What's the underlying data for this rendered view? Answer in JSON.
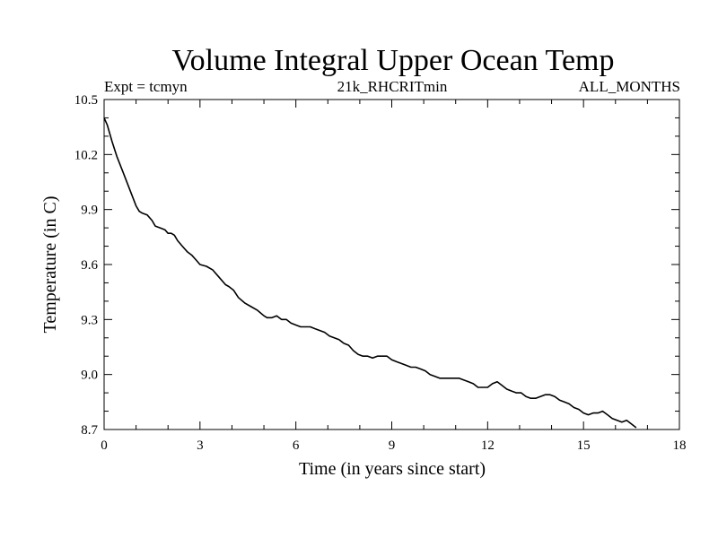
{
  "chart_data": {
    "type": "line",
    "title": "Volume Integral Upper Ocean Temp",
    "subtitle_left": "Expt = tcmyn",
    "subtitle_center": "21k_RHCRITmin",
    "subtitle_right": "ALL_MONTHS",
    "xlabel": "Time (in years since start)",
    "ylabel": "Temperature (in C)",
    "xlim": [
      0,
      18
    ],
    "ylim": [
      8.7,
      10.5
    ],
    "xticks": [
      0,
      3,
      6,
      9,
      12,
      15,
      18
    ],
    "xtick_labels": [
      "0",
      "3",
      "6",
      "9",
      "12",
      "15",
      "18"
    ],
    "yticks": [
      8.7,
      9.0,
      9.3,
      9.6,
      9.9,
      10.2,
      10.5
    ],
    "ytick_labels": [
      "8.7",
      "9.0",
      "9.3",
      "9.6",
      "9.9",
      "10.2",
      "10.5"
    ],
    "grid": false,
    "series": [
      {
        "name": "Temperature",
        "x": [
          0,
          0.1,
          0.25,
          0.4,
          0.6,
          0.8,
          1.0,
          1.1,
          1.2,
          1.35,
          1.5,
          1.6,
          1.75,
          1.9,
          2.0,
          2.1,
          2.2,
          2.3,
          2.45,
          2.6,
          2.75,
          2.9,
          3.0,
          3.2,
          3.4,
          3.6,
          3.8,
          3.9,
          4.05,
          4.2,
          4.4,
          4.6,
          4.8,
          5.0,
          5.1,
          5.25,
          5.4,
          5.55,
          5.7,
          5.85,
          6.0,
          6.15,
          6.3,
          6.45,
          6.6,
          6.75,
          6.9,
          7.05,
          7.2,
          7.35,
          7.5,
          7.65,
          7.8,
          7.95,
          8.1,
          8.25,
          8.4,
          8.55,
          8.7,
          8.85,
          9.0,
          9.15,
          9.3,
          9.45,
          9.6,
          9.75,
          9.9,
          10.05,
          10.2,
          10.35,
          10.5,
          10.65,
          10.8,
          10.95,
          11.1,
          11.25,
          11.4,
          11.55,
          11.7,
          11.85,
          12.0,
          12.15,
          12.3,
          12.45,
          12.6,
          12.75,
          12.9,
          13.05,
          13.2,
          13.35,
          13.5,
          13.65,
          13.8,
          13.95,
          14.1,
          14.25,
          14.4,
          14.55,
          14.7,
          14.85,
          15.0,
          15.15,
          15.3,
          15.45,
          15.6,
          15.75,
          15.9,
          16.05,
          16.2,
          16.35,
          16.5,
          16.65
        ],
        "values": [
          10.4,
          10.36,
          10.27,
          10.19,
          10.1,
          10.01,
          9.92,
          9.89,
          9.88,
          9.87,
          9.84,
          9.81,
          9.8,
          9.79,
          9.77,
          9.77,
          9.76,
          9.73,
          9.7,
          9.67,
          9.65,
          9.62,
          9.6,
          9.59,
          9.57,
          9.53,
          9.49,
          9.48,
          9.46,
          9.42,
          9.39,
          9.37,
          9.35,
          9.32,
          9.31,
          9.31,
          9.32,
          9.3,
          9.3,
          9.28,
          9.27,
          9.26,
          9.26,
          9.26,
          9.25,
          9.24,
          9.23,
          9.21,
          9.2,
          9.19,
          9.17,
          9.16,
          9.13,
          9.11,
          9.1,
          9.1,
          9.09,
          9.1,
          9.1,
          9.1,
          9.08,
          9.07,
          9.06,
          9.05,
          9.04,
          9.04,
          9.03,
          9.02,
          9.0,
          8.99,
          8.98,
          8.98,
          8.98,
          8.98,
          8.98,
          8.97,
          8.96,
          8.95,
          8.93,
          8.93,
          8.93,
          8.95,
          8.96,
          8.94,
          8.92,
          8.91,
          8.9,
          8.9,
          8.88,
          8.87,
          8.87,
          8.88,
          8.89,
          8.89,
          8.88,
          8.86,
          8.85,
          8.84,
          8.82,
          8.81,
          8.79,
          8.78,
          8.79,
          8.79,
          8.8,
          8.78,
          8.76,
          8.75,
          8.74,
          8.75,
          8.73,
          8.71
        ]
      }
    ]
  }
}
